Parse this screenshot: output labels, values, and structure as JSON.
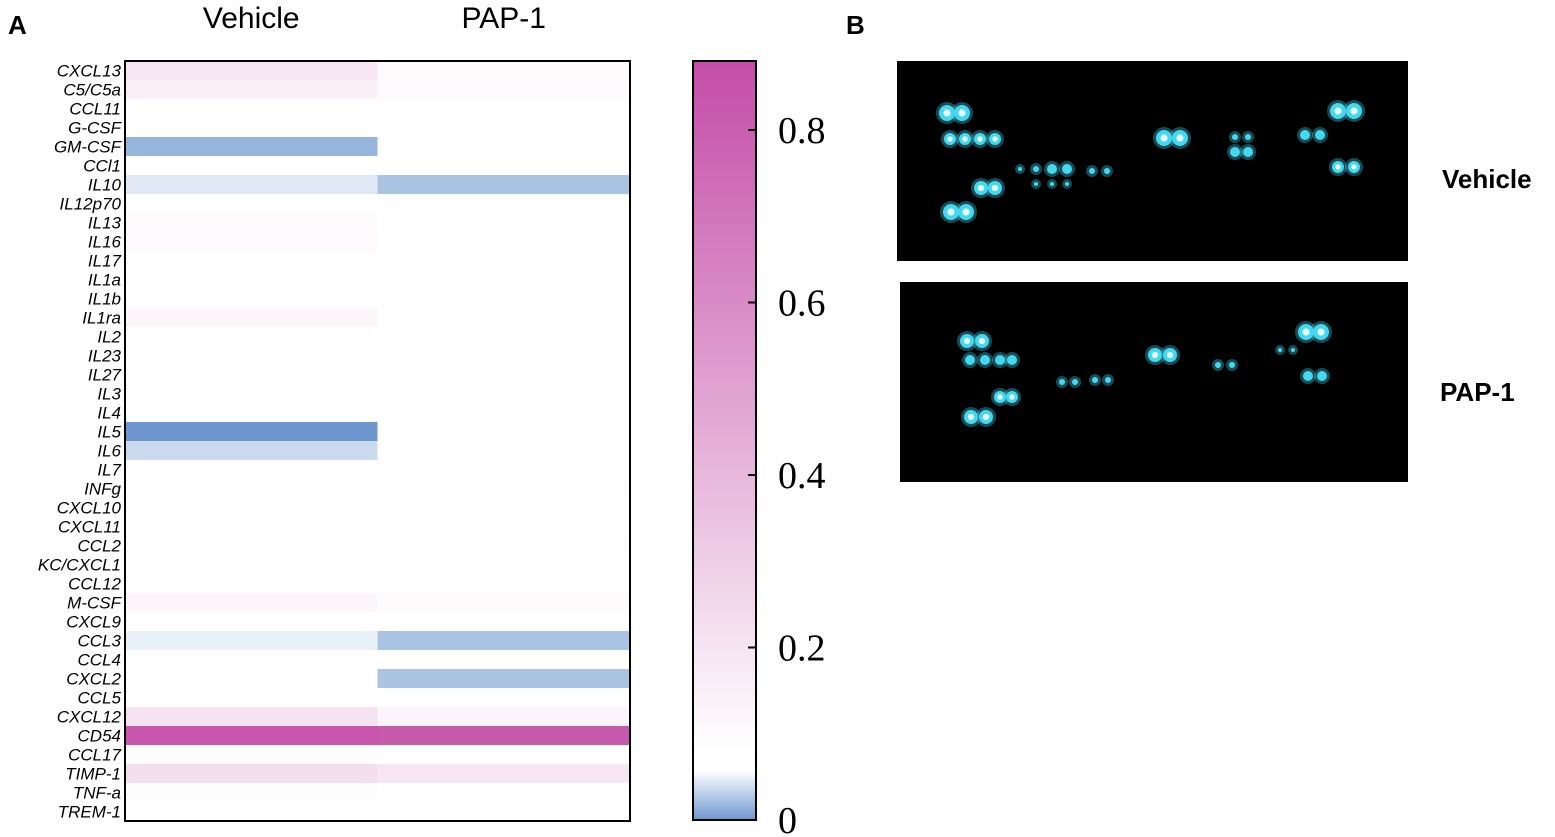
{
  "panels": {
    "a": "A",
    "b": "B"
  },
  "chart_data": {
    "type": "heatmap",
    "columns": [
      "Vehicle",
      "PAP-1"
    ],
    "rows": [
      "CXCL13",
      "C5/C5a",
      "CCL11",
      "G-CSF",
      "GM-CSF",
      "CCl1",
      "IL10",
      "IL12p70",
      "IL13",
      "IL16",
      "IL17",
      "IL1a",
      "IL1b",
      "IL1ra",
      "IL2",
      "IL23",
      "IL27",
      "IL3",
      "IL4",
      "IL5",
      "IL6",
      "IL7",
      "INFg",
      "CXCL10",
      "CXCL11",
      "CCL2",
      "KC/CXCL1",
      "CCL12",
      "M-CSF",
      "CXCL9",
      "CCL3",
      "CCL4",
      "CXCL2",
      "CCL5",
      "CXCL12",
      "CD54",
      "CCL17",
      "TIMP-1",
      "TNF-a",
      "TREM-1"
    ],
    "values": [
      [
        0.16,
        0.07
      ],
      [
        0.12,
        0.08
      ],
      [
        0.05,
        0.05
      ],
      [
        0.05,
        0.05
      ],
      [
        0.0,
        0.05
      ],
      [
        0.05,
        0.05
      ],
      [
        0.035,
        0.01
      ],
      [
        0.05,
        0.05
      ],
      [
        0.07,
        0.05
      ],
      [
        0.08,
        0.05
      ],
      [
        0.05,
        0.05
      ],
      [
        0.05,
        0.05
      ],
      [
        0.05,
        0.05
      ],
      [
        0.09,
        0.05
      ],
      [
        0.05,
        0.05
      ],
      [
        0.05,
        0.05
      ],
      [
        0.05,
        0.05
      ],
      [
        0.05,
        0.05
      ],
      [
        0.05,
        0.05
      ],
      [
        -0.02,
        0.05
      ],
      [
        0.025,
        0.05
      ],
      [
        0.05,
        0.05
      ],
      [
        0.05,
        0.055
      ],
      [
        0.05,
        0.05
      ],
      [
        0.05,
        0.05
      ],
      [
        0.055,
        0.055
      ],
      [
        0.05,
        0.05
      ],
      [
        0.05,
        0.05
      ],
      [
        0.09,
        0.07
      ],
      [
        0.05,
        0.05
      ],
      [
        0.04,
        0.01
      ],
      [
        0.05,
        0.05
      ],
      [
        0.05,
        0.01
      ],
      [
        0.05,
        0.05
      ],
      [
        0.18,
        0.1
      ],
      [
        0.84,
        0.82
      ],
      [
        0.05,
        0.05
      ],
      [
        0.2,
        0.16
      ],
      [
        0.06,
        0.05
      ],
      [
        0.05,
        0.05
      ]
    ],
    "colorbar": {
      "ticks": [
        0,
        0.2,
        0.4,
        0.6,
        0.8
      ],
      "tick_labels": [
        "0",
        "0.2",
        "0.4",
        "0.6",
        "0.8"
      ],
      "range": [
        0,
        0.88
      ],
      "colors": {
        "low": "#6e97cf",
        "white": "#ffffff",
        "high": "#c44da8"
      }
    }
  },
  "blot": {
    "labels": [
      "Vehicle",
      "PAP-1"
    ],
    "background": "#000000",
    "spot_color": "#44d8f0"
  }
}
